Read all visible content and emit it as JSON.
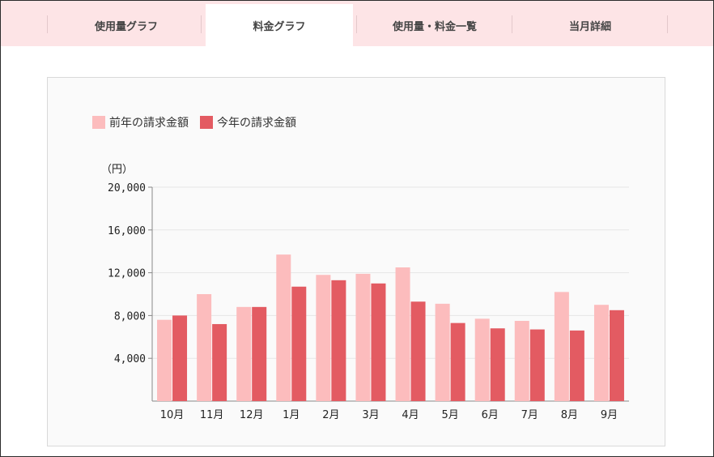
{
  "tabs": [
    {
      "label": "使用量グラフ",
      "active": false
    },
    {
      "label": "料金グラフ",
      "active": true
    },
    {
      "label": "使用量・料金一覧",
      "active": false
    },
    {
      "label": "当月詳細",
      "active": false
    }
  ],
  "colors": {
    "tab_bar_bg": "#fde4e6",
    "previous_year": "#fcbcbd",
    "current_year": "#e35b62"
  },
  "chart_data": {
    "type": "bar",
    "y_unit_label": "（円）",
    "categories": [
      "10月",
      "11月",
      "12月",
      "1月",
      "2月",
      "3月",
      "4月",
      "5月",
      "6月",
      "7月",
      "8月",
      "9月"
    ],
    "series": [
      {
        "name": "前年の請求金額",
        "color": "#fcbcbd",
        "values": [
          7600,
          10000,
          8800,
          13700,
          11800,
          11900,
          12500,
          9100,
          7700,
          7500,
          10200,
          9000
        ]
      },
      {
        "name": "今年の請求金額",
        "color": "#e35b62",
        "values": [
          8000,
          7200,
          8800,
          10700,
          11300,
          11000,
          9300,
          7300,
          6800,
          6700,
          6600,
          8500
        ]
      }
    ],
    "y_ticks": [
      "20,000",
      "16,000",
      "12,000",
      "8,000",
      "4,000"
    ],
    "y_tick_values": [
      20000,
      16000,
      12000,
      8000,
      4000
    ],
    "ylim": [
      0,
      20000
    ],
    "grid": true,
    "legend": "top-left"
  }
}
